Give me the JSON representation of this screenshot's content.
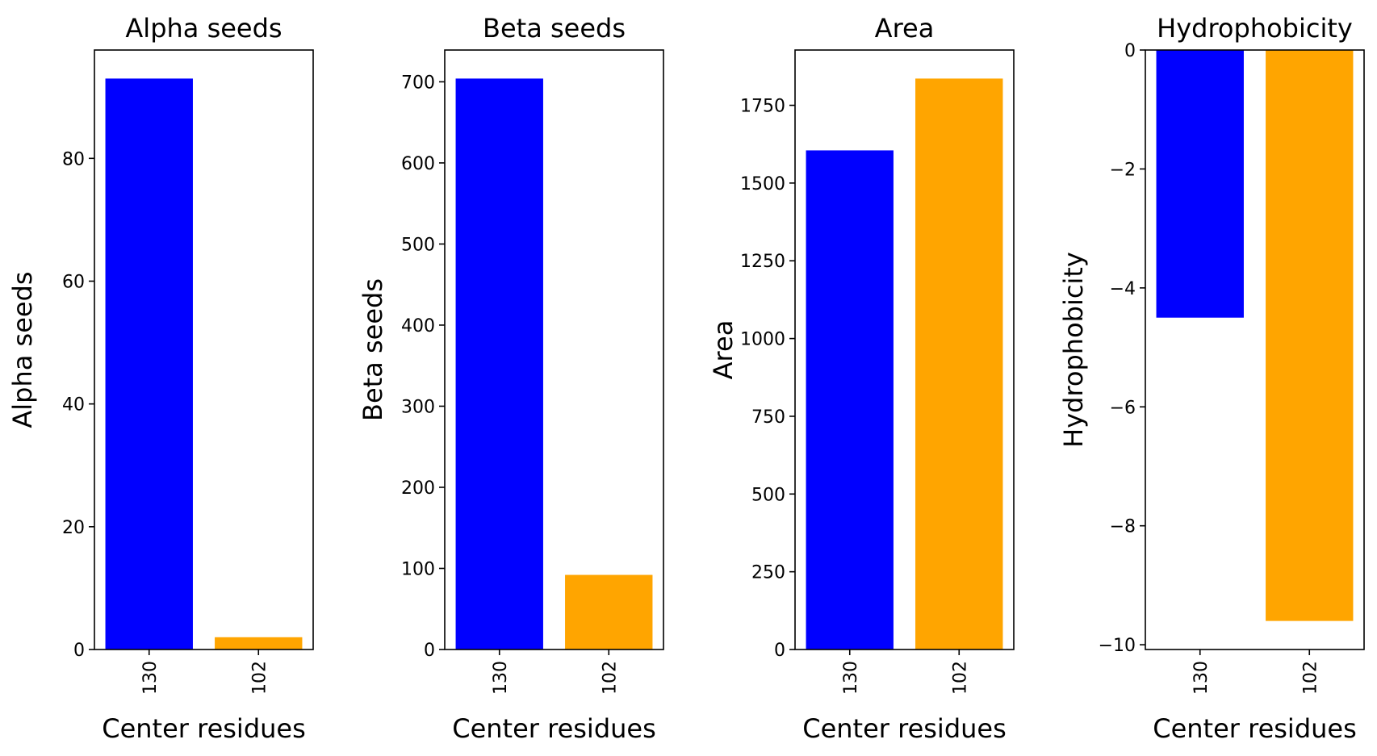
{
  "colors": {
    "series_a": "#0000ff",
    "series_b": "#ffa500",
    "axis": "#000000"
  },
  "chart_data": [
    {
      "type": "bar",
      "title": "Alpha seeds",
      "xlabel": "Center residues",
      "ylabel": "Alpha seeds",
      "categories": [
        "130",
        "102"
      ],
      "values": [
        93,
        2
      ],
      "ylim": [
        0,
        97.65
      ],
      "yticks": [
        0,
        20,
        40,
        60,
        80
      ],
      "bar_colors": [
        "#0000ff",
        "#ffa500"
      ],
      "grid": false
    },
    {
      "type": "bar",
      "title": "Beta seeds",
      "xlabel": "Center residues",
      "ylabel": "Beta seeds",
      "categories": [
        "130",
        "102"
      ],
      "values": [
        704,
        92
      ],
      "ylim": [
        0,
        739.2
      ],
      "yticks": [
        0,
        100,
        200,
        300,
        400,
        500,
        600,
        700
      ],
      "bar_colors": [
        "#0000ff",
        "#ffa500"
      ],
      "grid": false
    },
    {
      "type": "bar",
      "title": "Area",
      "xlabel": "Center residues",
      "ylabel": "Area",
      "categories": [
        "130",
        "102"
      ],
      "values": [
        1605,
        1836
      ],
      "ylim": [
        0,
        1927.8
      ],
      "yticks": [
        0,
        250,
        500,
        750,
        1000,
        1250,
        1500,
        1750
      ],
      "bar_colors": [
        "#0000ff",
        "#ffa500"
      ],
      "grid": false
    },
    {
      "type": "bar",
      "title": "Hydrophobicity",
      "xlabel": "Center residues",
      "ylabel": "Hydrophobicity",
      "categories": [
        "130",
        "102"
      ],
      "values": [
        -4.5,
        -9.6
      ],
      "ylim": [
        -10.08,
        0
      ],
      "yticks": [
        -10,
        -8,
        -6,
        -4,
        -2,
        0
      ],
      "bar_colors": [
        "#0000ff",
        "#ffa500"
      ],
      "grid": false
    }
  ]
}
